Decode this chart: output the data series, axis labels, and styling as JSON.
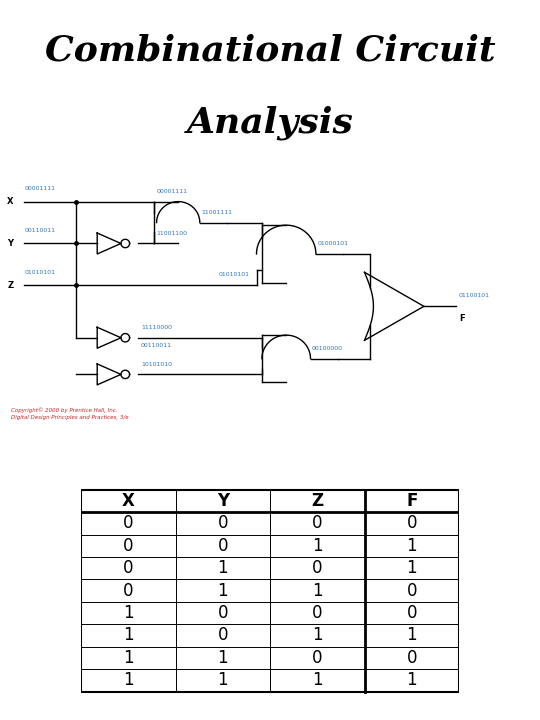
{
  "title_line1": "Combinational Circuit",
  "title_line2": "Analysis",
  "title_fontsize": 26,
  "title_fontweight": "bold",
  "title_fontstyle": "italic",
  "bg_color": "#ffffff",
  "circuit_color": "#000000",
  "label_color": "#3377bb",
  "red_text_color": "#cc2222",
  "copyright_text": "Copyright© 2000 by Prentice Hall, Inc.\nDigital Design Principles and Practices, 3/e",
  "input_labels": [
    "X",
    "Y",
    "Z"
  ],
  "input_vals": [
    "00001111",
    "00110011",
    "01010101"
  ],
  "table_headers": [
    "X",
    "Y",
    "Z",
    "F"
  ],
  "table_data": [
    [
      0,
      0,
      0,
      0
    ],
    [
      0,
      0,
      1,
      1
    ],
    [
      0,
      1,
      0,
      1
    ],
    [
      0,
      1,
      1,
      0
    ],
    [
      1,
      0,
      0,
      0
    ],
    [
      1,
      0,
      1,
      1
    ],
    [
      1,
      1,
      0,
      0
    ],
    [
      1,
      1,
      1,
      1
    ]
  ],
  "circuit_labels": {
    "x_val": "00001111",
    "y_val": "00110011",
    "z_val": "01010101",
    "and1_in1": "00001111",
    "and1_in2": "11001100",
    "and1_out": "11001111",
    "and2_in2": "01010101",
    "and2_out": "01000101",
    "and3_in1": "11110000",
    "and3_in2": "00110011",
    "and3_in3": "10101010",
    "and3_out": "00100000",
    "or_out": "01100101",
    "f_label": "F"
  }
}
